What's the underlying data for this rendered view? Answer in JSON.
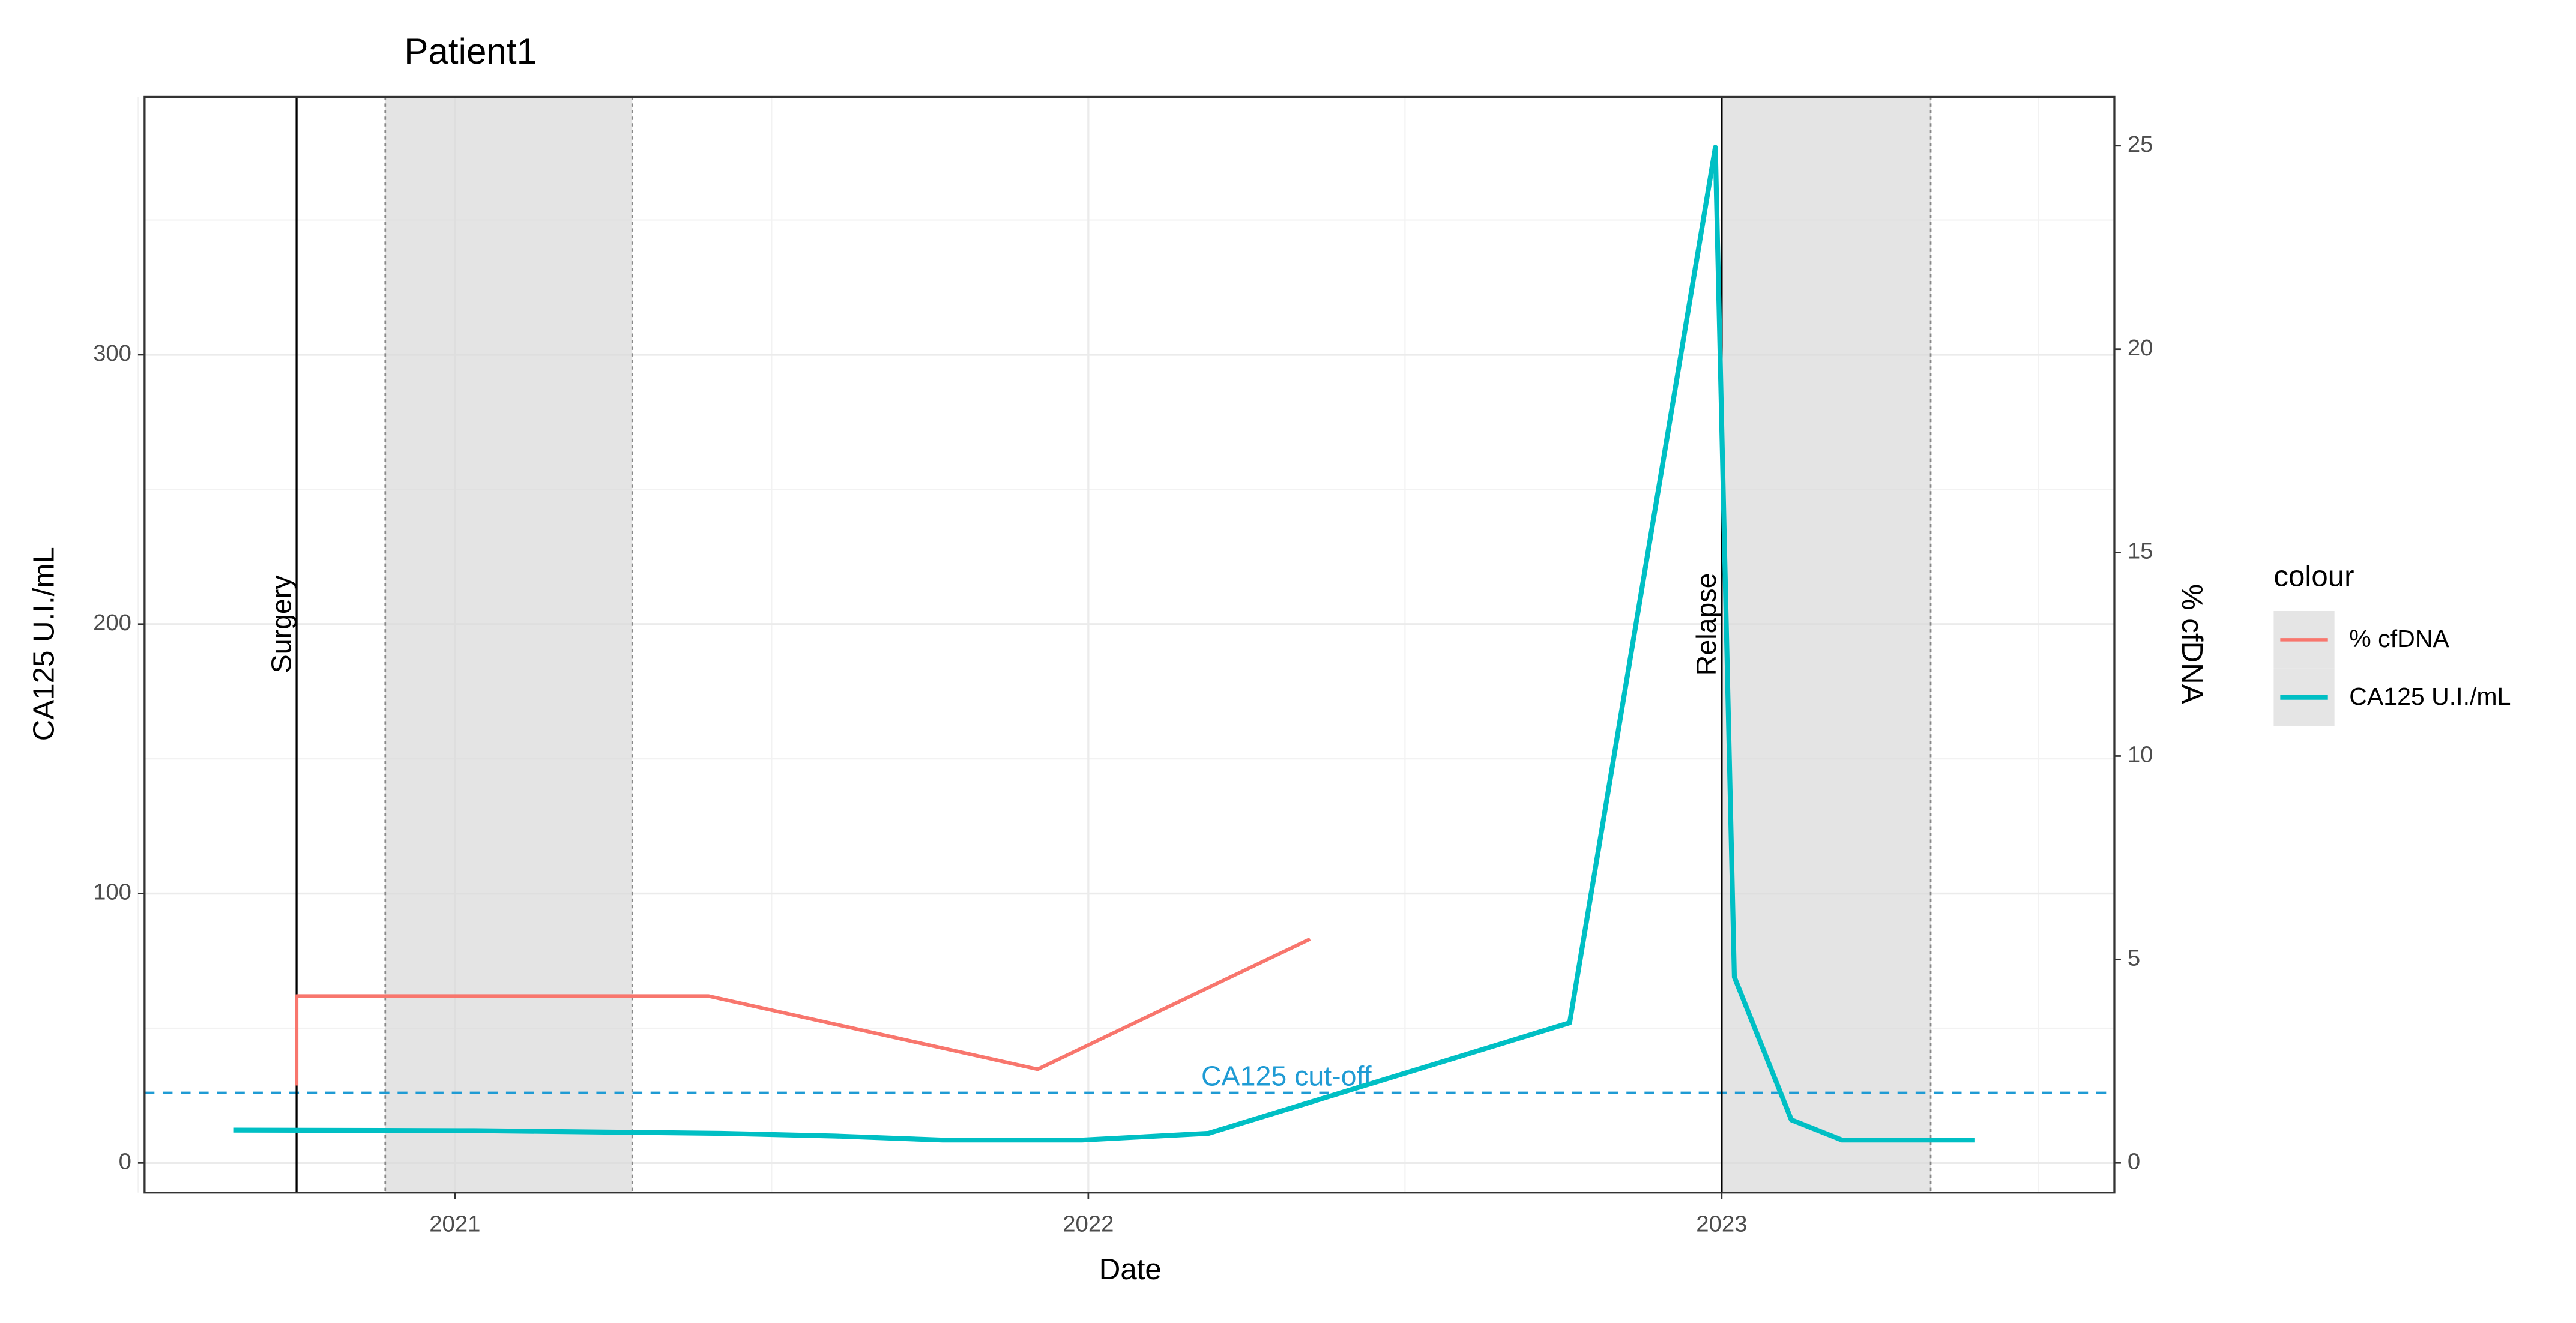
{
  "chart_data": {
    "type": "line",
    "title": "Patient1",
    "x_label": "Date",
    "y_label": "CA125 U.I./mL",
    "y2_label": "% cfDNA",
    "xlim": [
      2020.51,
      2023.62
    ],
    "xticks": [
      2021,
      2022,
      2023
    ],
    "ylim": [
      -11,
      395.7
    ],
    "yticks": [
      0,
      100,
      200,
      300
    ],
    "y2lim": [
      -0.73,
      26.2
    ],
    "y2ticks": [
      0,
      5,
      10,
      15,
      20,
      25
    ],
    "grid": true,
    "legend_title": "colour",
    "legend_position": "right",
    "series": [
      {
        "name": "% cfDNA",
        "color": "#F8766D",
        "axis": "y2",
        "x": [
          2020.75,
          2020.75,
          2021.4,
          2021.92,
          2022.35
        ],
        "values": [
          1.9,
          4.1,
          4.1,
          2.3,
          5.5
        ]
      },
      {
        "name": "CA125 U.I./mL",
        "color": "#00BFC4",
        "x": [
          2020.65,
          2021.03,
          2021.42,
          2021.6,
          2021.77,
          2021.99,
          2022.19,
          2022.76,
          2022.99,
          2023.02,
          2023.11,
          2023.19,
          2023.4
        ],
        "values": [
          12.2,
          12,
          11,
          10,
          8.5,
          8.5,
          11,
          52,
          377,
          69,
          16,
          8.5,
          8.5
        ]
      }
    ],
    "events": [
      {
        "label": "Surgery",
        "x": 2020.75
      },
      {
        "label": "Relapse",
        "x": 2023.0
      }
    ],
    "shaded": [
      [
        2020.89,
        2021.28
      ],
      [
        2023.0,
        2023.33
      ]
    ],
    "cutoff": {
      "label": "CA125 cut-off",
      "value": 26,
      "color": "#1f9bd4"
    }
  }
}
